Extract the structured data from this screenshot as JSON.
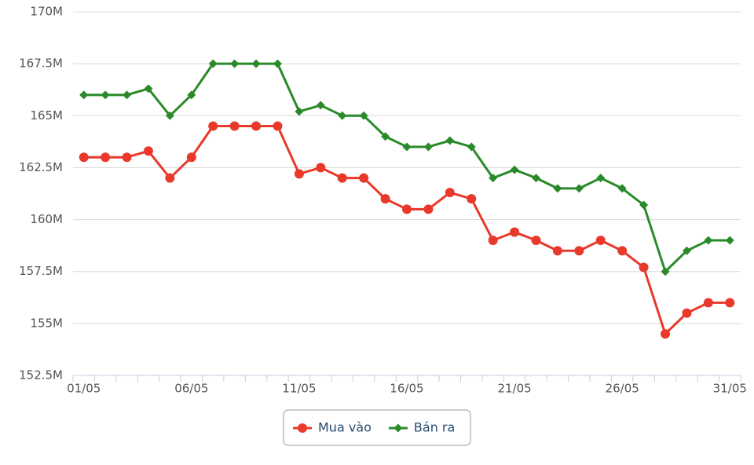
{
  "chart_data": {
    "type": "line",
    "categories": [
      "01/05",
      null,
      null,
      null,
      null,
      "06/05",
      null,
      null,
      null,
      null,
      "11/05",
      null,
      null,
      null,
      null,
      "16/05",
      null,
      null,
      null,
      null,
      "21/05",
      null,
      null,
      null,
      null,
      "26/05",
      null,
      null,
      null,
      null,
      "31/05"
    ],
    "series": [
      {
        "name": "Mua vào",
        "color": "#e8392b",
        "marker": "circle",
        "values": [
          163000000,
          163000000,
          163000000,
          163300000,
          162000000,
          163000000,
          164500000,
          164500000,
          164500000,
          164500000,
          162200000,
          162500000,
          162000000,
          162000000,
          161000000,
          160500000,
          160500000,
          161300000,
          161000000,
          159000000,
          159400000,
          159000000,
          158500000,
          158500000,
          159000000,
          158500000,
          157700000,
          154500000,
          155500000,
          156000000,
          156000000
        ]
      },
      {
        "name": "Bán ra",
        "color": "#2a8a2a",
        "marker": "diamond",
        "values": [
          166000000,
          166000000,
          166000000,
          166300000,
          165000000,
          166000000,
          167500000,
          167500000,
          167500000,
          167500000,
          165200000,
          165500000,
          165000000,
          165000000,
          164000000,
          163500000,
          163500000,
          163800000,
          163500000,
          162000000,
          162400000,
          162000000,
          161500000,
          161500000,
          162000000,
          161500000,
          160700000,
          157500000,
          158500000,
          159000000,
          159000000
        ]
      }
    ],
    "ylim": [
      152500000,
      170000000
    ],
    "yticks": [
      {
        "value": 152500000,
        "label": "152.5M"
      },
      {
        "value": 155000000,
        "label": "155M"
      },
      {
        "value": 157500000,
        "label": "157.5M"
      },
      {
        "value": 160000000,
        "label": "160M"
      },
      {
        "value": 162500000,
        "label": "162.5M"
      },
      {
        "value": 165000000,
        "label": "165M"
      },
      {
        "value": 167500000,
        "label": "167.5M"
      },
      {
        "value": 170000000,
        "label": "170M"
      }
    ],
    "grid": true
  }
}
